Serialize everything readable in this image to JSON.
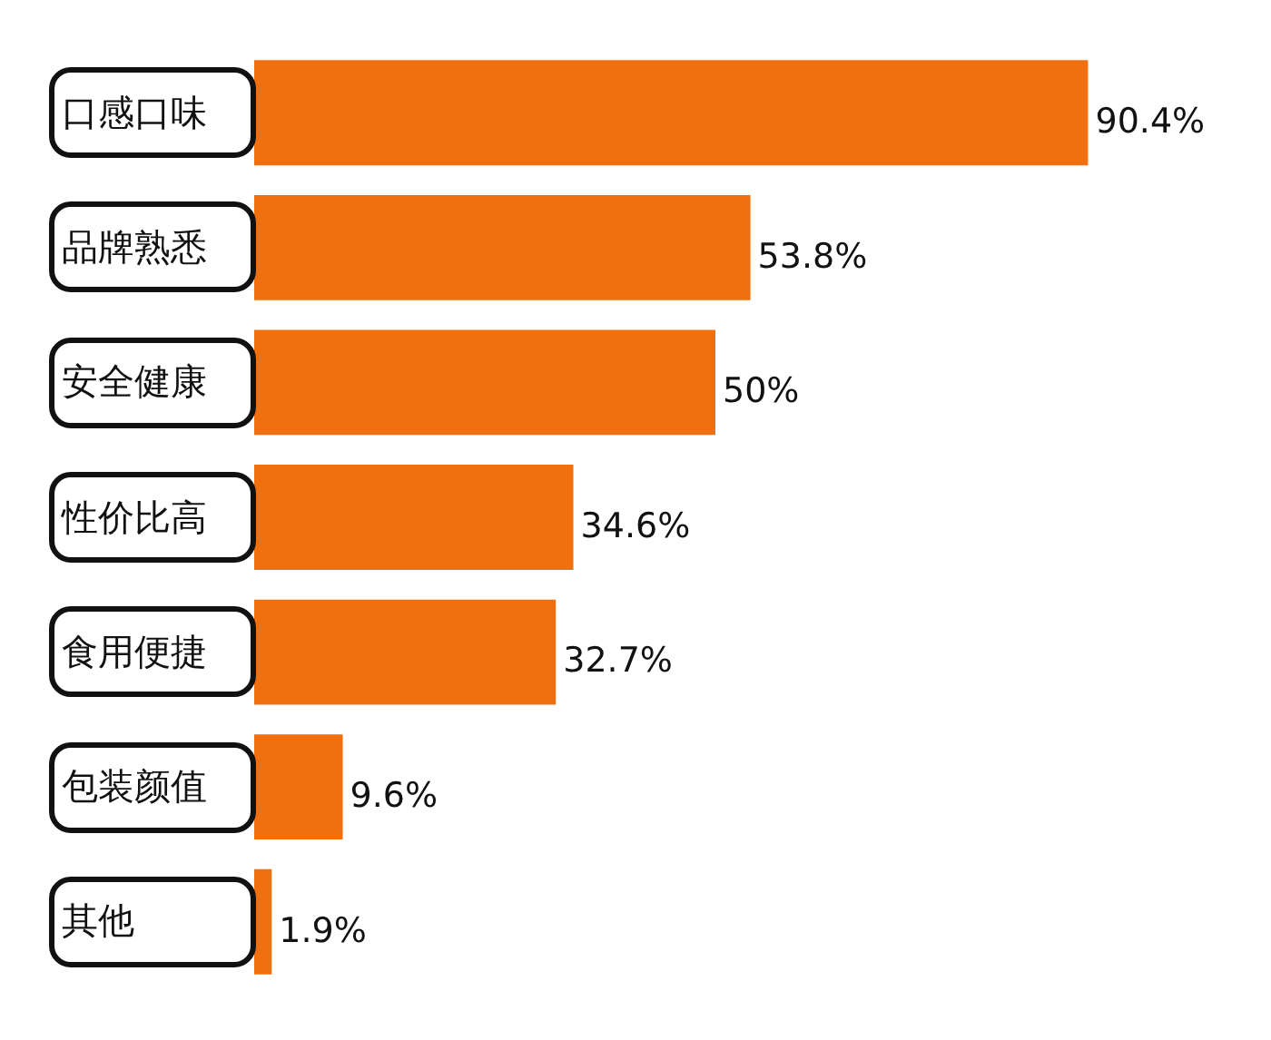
{
  "chart_data": {
    "type": "bar",
    "orientation": "horizontal",
    "categories": [
      "口感口味",
      "品牌熟悉",
      "安全健康",
      "性价比高",
      "食用便捷",
      "包装颜值",
      "其他"
    ],
    "values": [
      90.4,
      53.8,
      50,
      34.6,
      32.7,
      9.6,
      1.9
    ],
    "value_labels": [
      "90.4%",
      "53.8%",
      "50%",
      "34.6%",
      "32.7%",
      "9.6%",
      "1.9%"
    ],
    "color": "#f07010",
    "tick_labels": "y"
  }
}
